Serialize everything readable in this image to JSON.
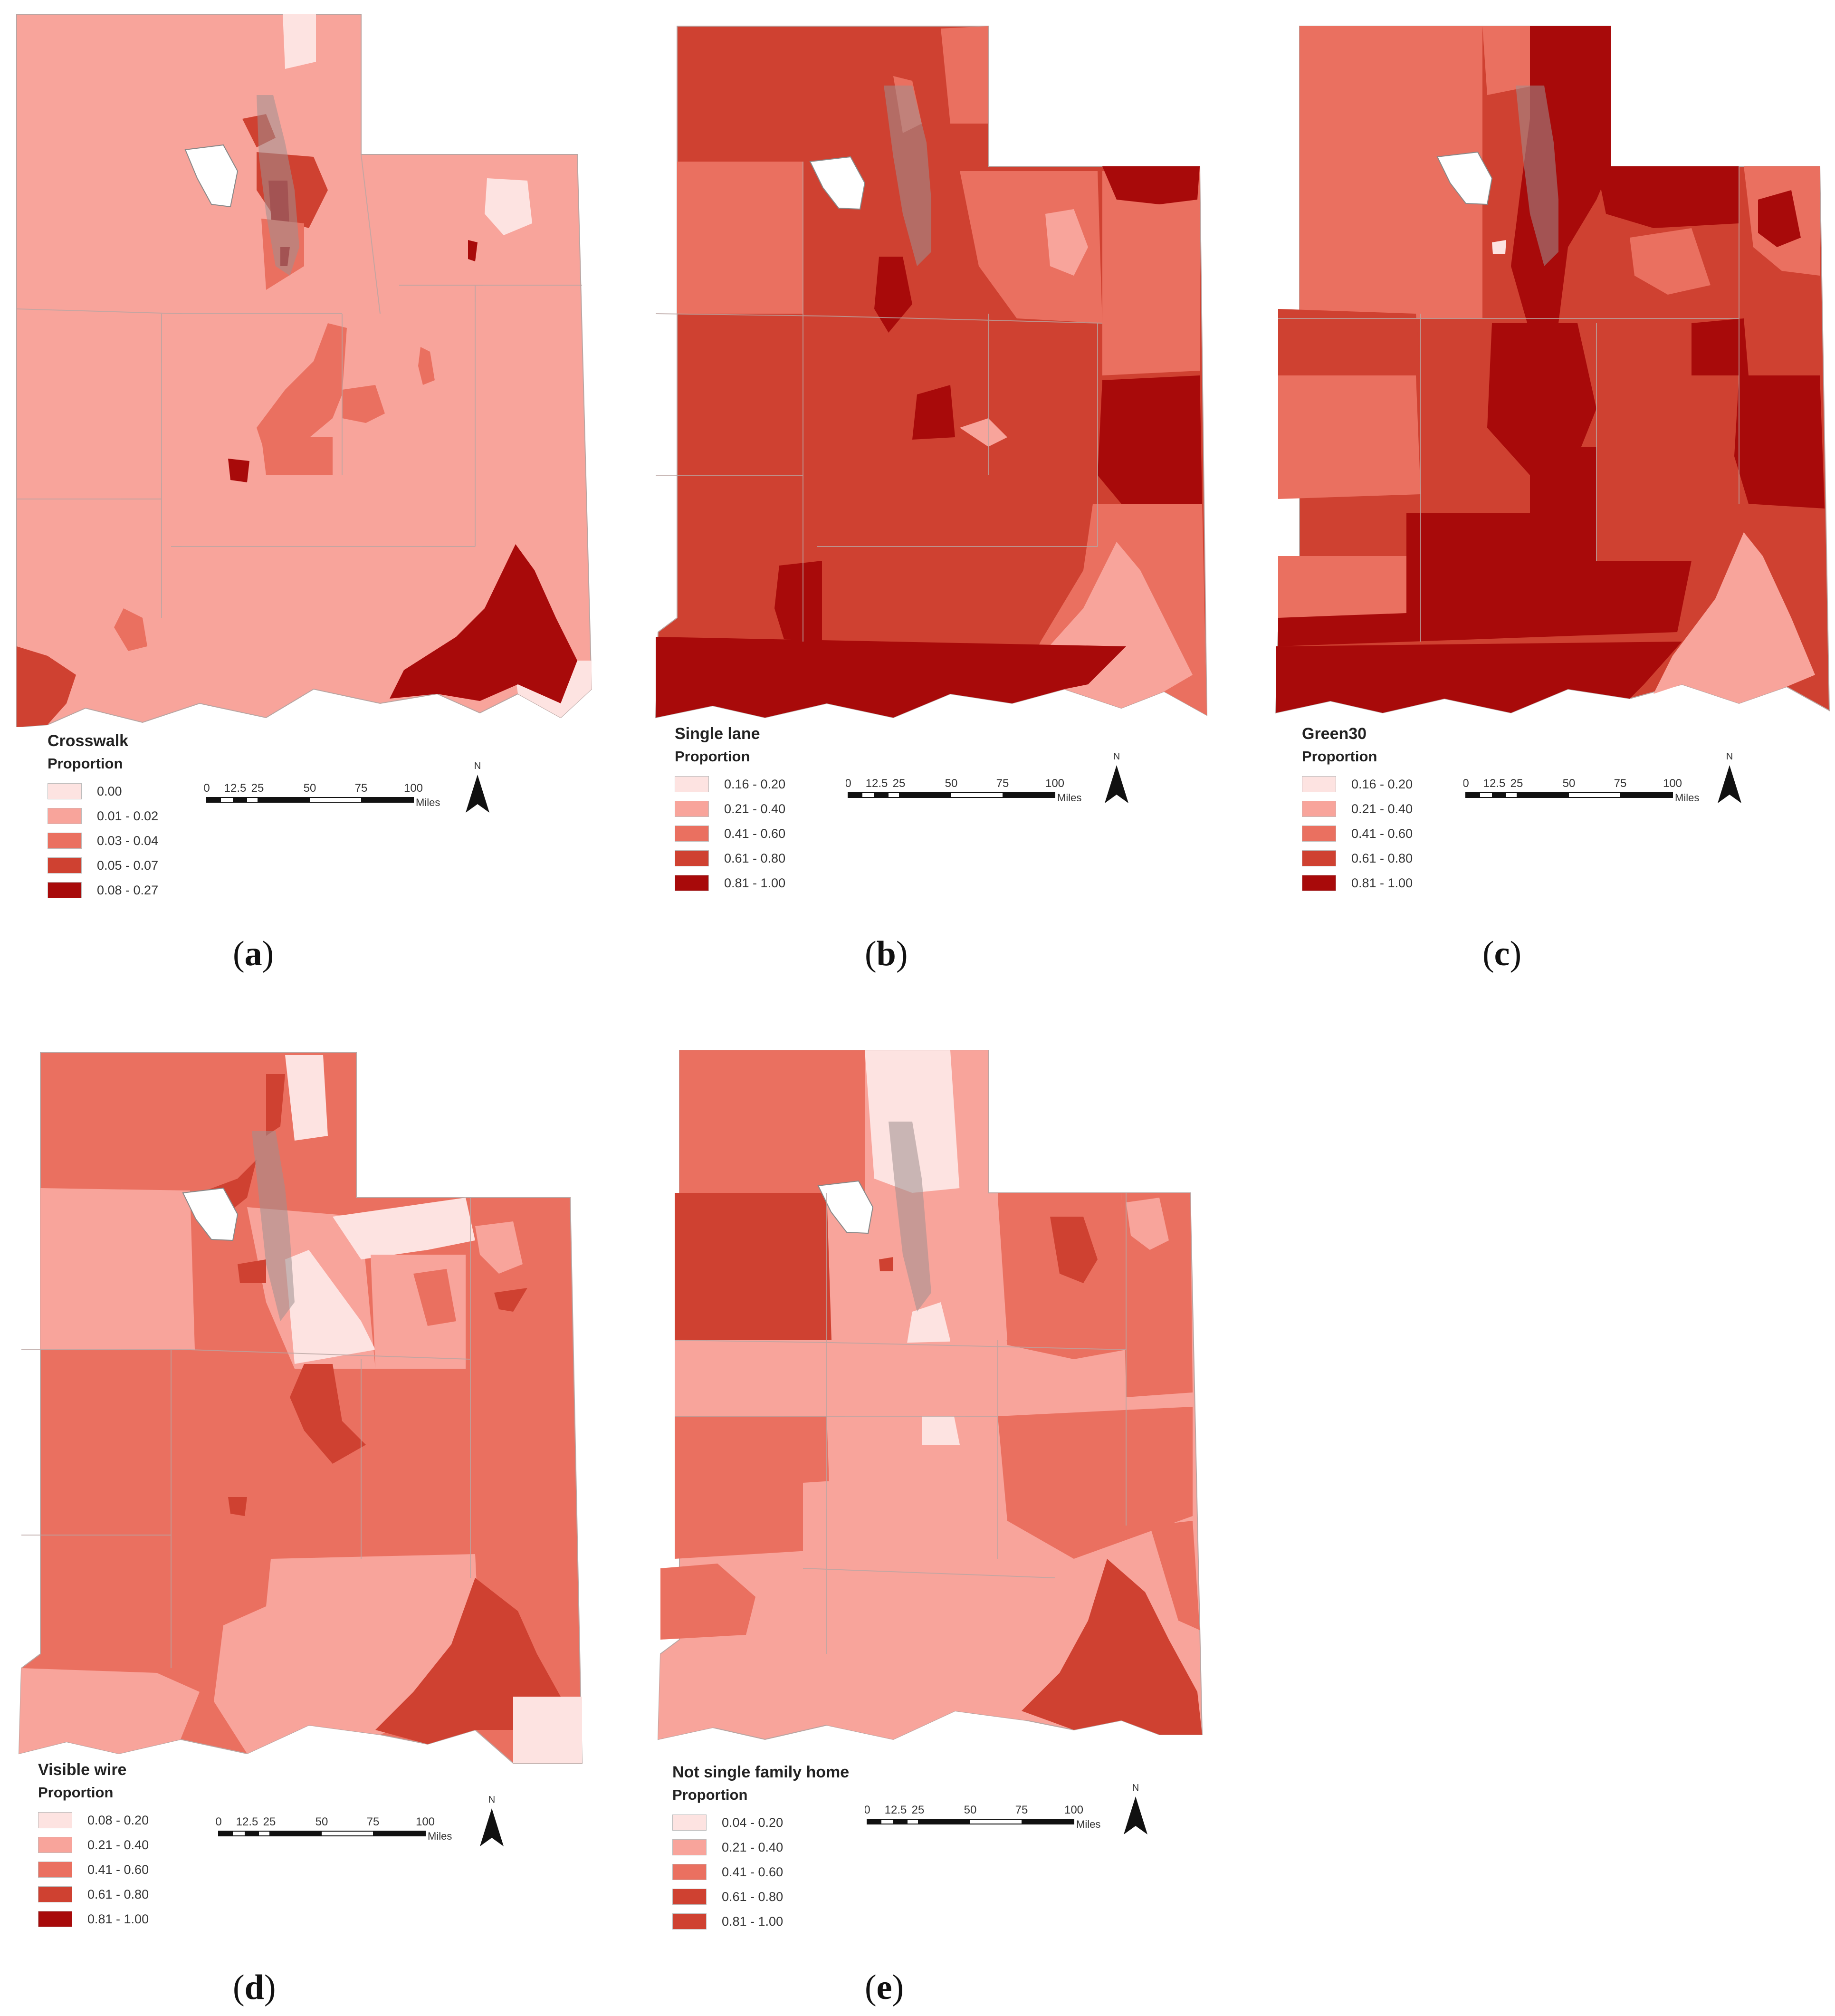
{
  "colors": {
    "c0": "#fde3e1",
    "c1": "#f8a49b",
    "c2": "#ea7060",
    "c3": "#cf4131",
    "c4": "#a80a0a",
    "boundary": "#b9a5a2",
    "urban": "#9e9090",
    "water": "#ffffff"
  },
  "scalebar": {
    "ticks": [
      "0",
      "12.5",
      "25",
      "50",
      "75",
      "100"
    ],
    "unit": "Miles"
  },
  "north_label": "N",
  "panels": [
    {
      "id": "a",
      "letter": "a",
      "legend_title": "Crosswalk",
      "legend_subtitle": "Proportion",
      "classes": [
        "0.00",
        "0.01 - 0.02",
        "0.03 - 0.04",
        "0.05 - 0.07",
        "0.08 - 0.27"
      ]
    },
    {
      "id": "b",
      "letter": "b",
      "legend_title": "Single lane",
      "legend_subtitle": "Proportion",
      "classes": [
        "0.16 - 0.20",
        "0.21 - 0.40",
        "0.41 - 0.60",
        "0.61 - 0.80",
        "0.81 - 1.00"
      ]
    },
    {
      "id": "c",
      "letter": "c",
      "legend_title": "Green30",
      "legend_subtitle": "Proportion",
      "classes": [
        "0.16 - 0.20",
        "0.21 - 0.40",
        "0.41 - 0.60",
        "0.61 - 0.80",
        "0.81 - 1.00"
      ]
    },
    {
      "id": "d",
      "letter": "d",
      "legend_title": "Visible wire",
      "legend_subtitle": "Proportion",
      "classes": [
        "0.08 - 0.20",
        "0.21 - 0.40",
        "0.41 - 0.60",
        "0.61 - 0.80",
        "0.81 - 1.00"
      ]
    },
    {
      "id": "e",
      "letter": "e",
      "legend_title": "Not single family home",
      "legend_subtitle": "Proportion",
      "classes": [
        "0.04 - 0.20",
        "0.21 - 0.40",
        "0.41 - 0.60",
        "0.61 - 0.80",
        "0.81 - 1.00"
      ]
    }
  ]
}
